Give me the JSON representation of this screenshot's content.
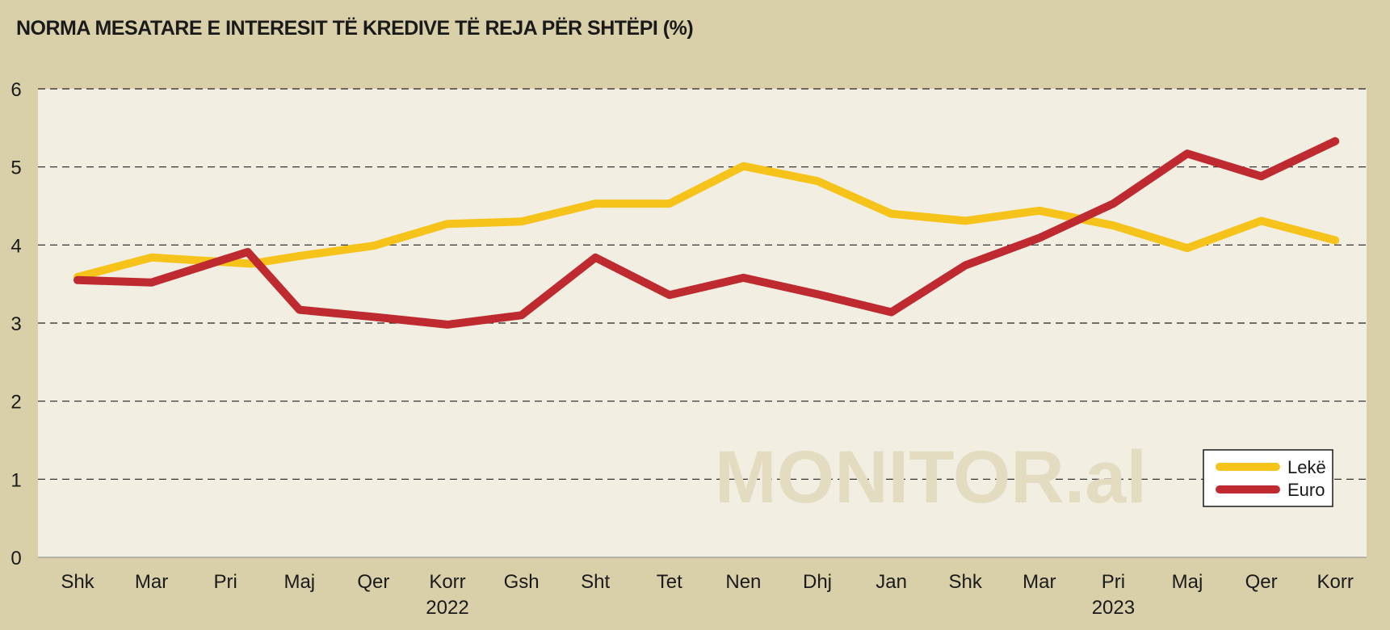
{
  "chart_data": {
    "type": "line",
    "title": "NORMA MESATARE E INTERESIT TË KREDIVE TË REJA PËR SHTËPI (%)",
    "watermark": "MONITOR.al",
    "colors": {
      "background": "#d9d0aa",
      "plot": "#f2efe2",
      "leke": "#f6c31b",
      "euro": "#bf2a30"
    },
    "ylim": [
      0,
      6
    ],
    "yticks": [
      "0",
      "1",
      "2",
      "3",
      "4",
      "5",
      "6"
    ],
    "grid": true,
    "legend_position": "bottom-right",
    "categories": [
      "Shk",
      "Mar",
      "Pri",
      "Maj",
      "Qer",
      "Korr",
      "Gsh",
      "Sht",
      "Tet",
      "Nen",
      "Dhj",
      "Jan",
      "Shk",
      "Mar",
      "Pri",
      "Maj",
      "Qer",
      "Korr"
    ],
    "year_labels": [
      {
        "label": "2022",
        "category_index": 5
      },
      {
        "label": "2023",
        "category_index": 14
      }
    ],
    "series": [
      {
        "name": "Lekë",
        "color": "#f6c31b",
        "points": [
          {
            "x": 0,
            "y": 3.59
          },
          {
            "x": 1,
            "y": 3.84
          },
          {
            "x": 2.35,
            "y": 3.76
          },
          {
            "x": 3,
            "y": 3.86
          },
          {
            "x": 4,
            "y": 3.99
          },
          {
            "x": 5,
            "y": 4.27
          },
          {
            "x": 6,
            "y": 4.3
          },
          {
            "x": 7,
            "y": 4.53
          },
          {
            "x": 8,
            "y": 4.53
          },
          {
            "x": 9,
            "y": 5.01
          },
          {
            "x": 10,
            "y": 4.82
          },
          {
            "x": 11,
            "y": 4.4
          },
          {
            "x": 12,
            "y": 4.31
          },
          {
            "x": 13,
            "y": 4.44
          },
          {
            "x": 14,
            "y": 4.25
          },
          {
            "x": 15,
            "y": 3.96
          },
          {
            "x": 16,
            "y": 4.31
          },
          {
            "x": 17,
            "y": 4.06
          }
        ]
      },
      {
        "name": "Euro",
        "color": "#bf2a30",
        "points": [
          {
            "x": 0,
            "y": 3.55
          },
          {
            "x": 1,
            "y": 3.52
          },
          {
            "x": 2.3,
            "y": 3.91
          },
          {
            "x": 3,
            "y": 3.17
          },
          {
            "x": 4,
            "y": 3.08
          },
          {
            "x": 5,
            "y": 2.98
          },
          {
            "x": 6,
            "y": 3.1
          },
          {
            "x": 7,
            "y": 3.84
          },
          {
            "x": 8,
            "y": 3.36
          },
          {
            "x": 9,
            "y": 3.58
          },
          {
            "x": 10,
            "y": 3.37
          },
          {
            "x": 11,
            "y": 3.14
          },
          {
            "x": 12,
            "y": 3.74
          },
          {
            "x": 13,
            "y": 4.09
          },
          {
            "x": 14,
            "y": 4.53
          },
          {
            "x": 15,
            "y": 5.17
          },
          {
            "x": 16,
            "y": 4.88
          },
          {
            "x": 17,
            "y": 5.33
          }
        ]
      }
    ]
  }
}
